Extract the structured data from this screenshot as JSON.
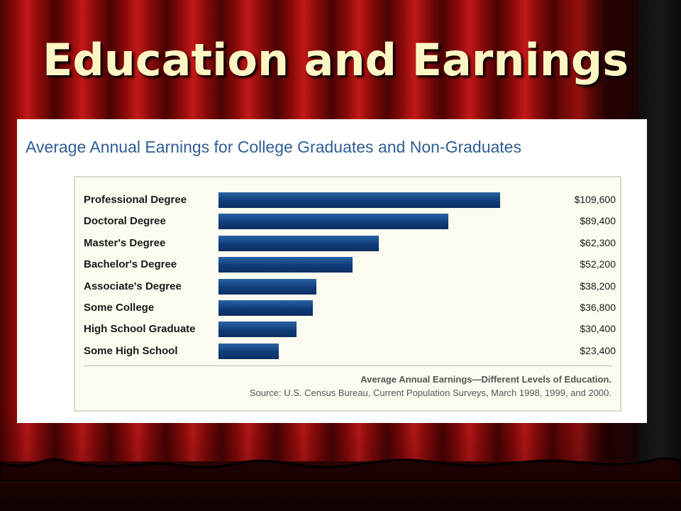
{
  "slide": {
    "title": "Education and Earnings"
  },
  "chart_data": {
    "type": "bar",
    "orientation": "horizontal",
    "title": "Average Annual Earnings for College Graduates and Non-Graduates",
    "categories": [
      "Professional Degree",
      "Doctoral Degree",
      "Master's Degree",
      "Bachelor's Degree",
      "Associate's Degree",
      "Some College",
      "High School Graduate",
      "Some High School"
    ],
    "values": [
      109600,
      89400,
      62300,
      52200,
      38200,
      36800,
      30400,
      23400
    ],
    "value_labels": [
      "$109,600",
      "$89,400",
      "$62,300",
      "$52,200",
      "$38,200",
      "$36,800",
      "$30,400",
      "$23,400"
    ],
    "xlim": [
      0,
      137000
    ],
    "caption": "Average Annual Earnings—Different Levels of Education.",
    "source": "Source: U.S. Census Bureau, Current Population Surveys, March 1998, 1999, and 2000.",
    "grid": false,
    "colors": {
      "bar": "#163f7d",
      "title": "#2f5d93"
    }
  },
  "colors": {
    "title_text": "#fdf6c4",
    "curtain": "#8e0a0a"
  }
}
